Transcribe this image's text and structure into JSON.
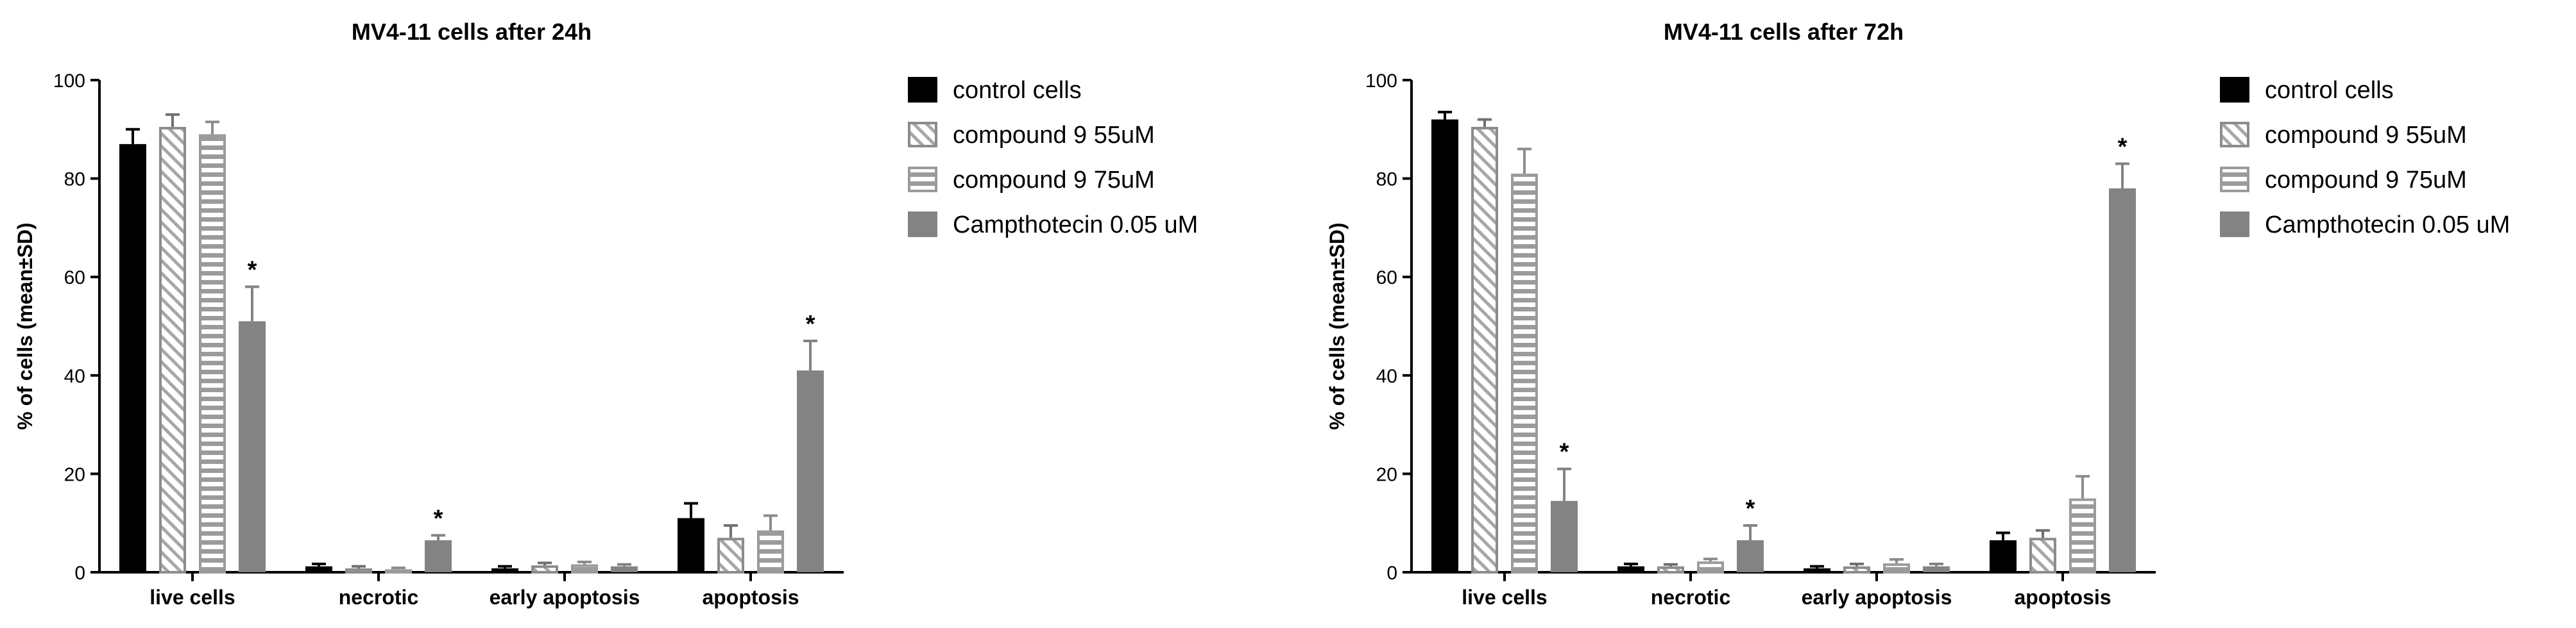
{
  "colors": {
    "black": "#000000",
    "dark_gray": "#838383",
    "hatch_gray": "#a7a7a7",
    "stripe_gray": "#9b9b9b"
  },
  "legend_entries": [
    {
      "label": "control cells",
      "pattern": "solid-black"
    },
    {
      "label": "compound 9 55uM",
      "pattern": "diagonal-hatch"
    },
    {
      "label": "compound 9 75uM",
      "pattern": "horizontal-stripes"
    },
    {
      "label": "Campthotecin 0.05 uM",
      "pattern": "solid-gray"
    }
  ],
  "chart_data": [
    {
      "type": "bar",
      "title": "MV4-11 cells after 24h",
      "xlabel": "",
      "ylabel": "% of cells (mean±SD)",
      "ylim": [
        0,
        100
      ],
      "yticks": [
        "0",
        "20",
        "40",
        "60",
        "80",
        "100"
      ],
      "categories": [
        "live cells",
        "necrotic",
        "early apoptosis",
        "apoptosis"
      ],
      "legend_position": "right",
      "grid": false,
      "series": [
        {
          "name": "control cells",
          "values": [
            87,
            1.2,
            0.8,
            11
          ],
          "errors": [
            3,
            0.5,
            0.4,
            3
          ]
        },
        {
          "name": "compound 9 55uM",
          "values": [
            90.5,
            0.8,
            1.4,
            7
          ],
          "errors": [
            2.5,
            0.4,
            0.5,
            2.5
          ]
        },
        {
          "name": "compound 9 75uM",
          "values": [
            89,
            0.6,
            1.6,
            8.5
          ],
          "errors": [
            2.5,
            0.3,
            0.5,
            3
          ]
        },
        {
          "name": "Campthotecin 0.05 uM",
          "values": [
            51,
            6.5,
            1.2,
            41
          ],
          "errors": [
            7,
            1,
            0.4,
            6
          ]
        }
      ],
      "annotations": [
        {
          "series": 3,
          "category": 0,
          "text": "*"
        },
        {
          "series": 3,
          "category": 1,
          "text": "*"
        },
        {
          "series": 3,
          "category": 3,
          "text": "*"
        }
      ]
    },
    {
      "type": "bar",
      "title": "MV4-11 cells after 72h",
      "xlabel": "",
      "ylabel": "% of cells (mean±SD)",
      "ylim": [
        0,
        100
      ],
      "yticks": [
        "0",
        "20",
        "40",
        "60",
        "80",
        "100"
      ],
      "categories": [
        "live cells",
        "necrotic",
        "early apoptosis",
        "apoptosis"
      ],
      "legend_position": "right",
      "grid": false,
      "series": [
        {
          "name": "control cells",
          "values": [
            92,
            1.2,
            0.8,
            6.5
          ],
          "errors": [
            1.5,
            0.5,
            0.4,
            1.5
          ]
        },
        {
          "name": "compound 9 55uM",
          "values": [
            90.5,
            1.2,
            1.2,
            7
          ],
          "errors": [
            1.5,
            0.4,
            0.5,
            1.5
          ]
        },
        {
          "name": "compound 9 75uM",
          "values": [
            81,
            2.2,
            1.8,
            15
          ],
          "errors": [
            5,
            0.5,
            0.8,
            4.5
          ]
        },
        {
          "name": "Campthotecin 0.05 uM",
          "values": [
            14.5,
            6.5,
            1.2,
            78
          ],
          "errors": [
            6.5,
            3,
            0.5,
            5
          ]
        }
      ],
      "annotations": [
        {
          "series": 3,
          "category": 0,
          "text": "*"
        },
        {
          "series": 3,
          "category": 1,
          "text": "*"
        },
        {
          "series": 3,
          "category": 3,
          "text": "*"
        }
      ]
    }
  ]
}
